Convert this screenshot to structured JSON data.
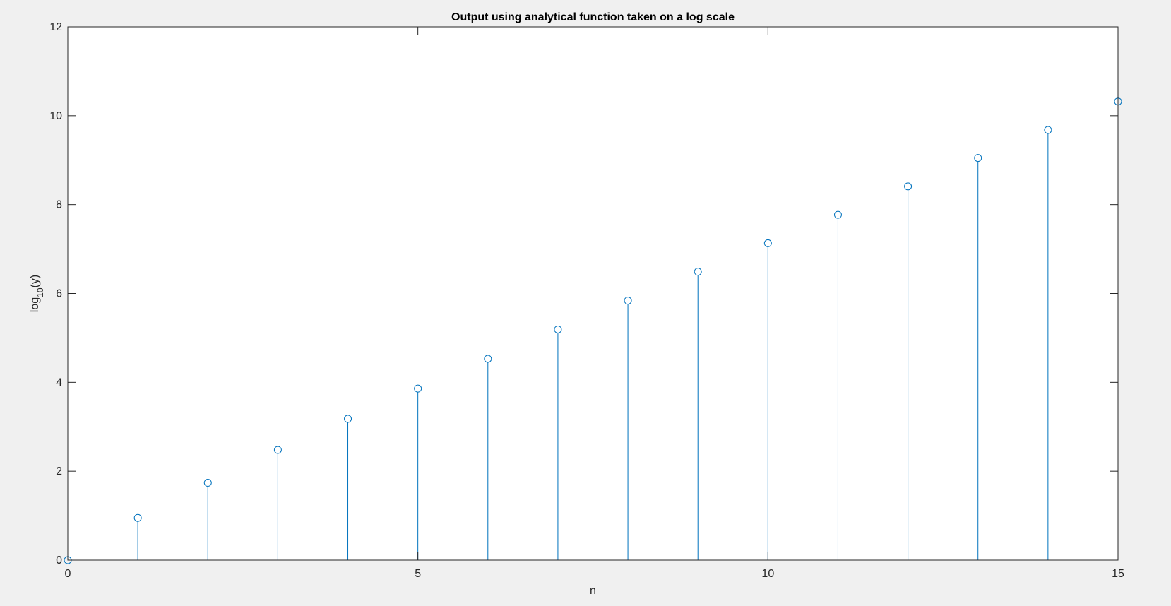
{
  "chart_data": {
    "type": "stem",
    "title": "Output using analytical function taken on a log scale",
    "xlabel": "n",
    "ylabel": {
      "base": "log",
      "sub": "10",
      "rest": "(y)"
    },
    "xlim": [
      0,
      15
    ],
    "ylim": [
      0,
      12
    ],
    "x_ticks": [
      0,
      5,
      10,
      15
    ],
    "y_ticks": [
      0,
      2,
      4,
      6,
      8,
      10,
      12
    ],
    "grid": false,
    "series": [
      {
        "color": "#0072bd",
        "marker": "circle",
        "x": [
          0,
          1,
          2,
          3,
          4,
          5,
          6,
          7,
          8,
          9,
          10,
          11,
          12,
          13,
          14,
          15
        ],
        "y": [
          0,
          0.95,
          1.74,
          2.48,
          3.18,
          3.86,
          4.53,
          5.19,
          5.84,
          6.49,
          7.13,
          7.77,
          8.41,
          9.05,
          9.68,
          10.32
        ]
      }
    ]
  },
  "colors": {
    "figure_background": "#f0f0f0",
    "axes_background": "#ffffff",
    "axis_color": "#262626",
    "stem_color": "#0072bd"
  }
}
